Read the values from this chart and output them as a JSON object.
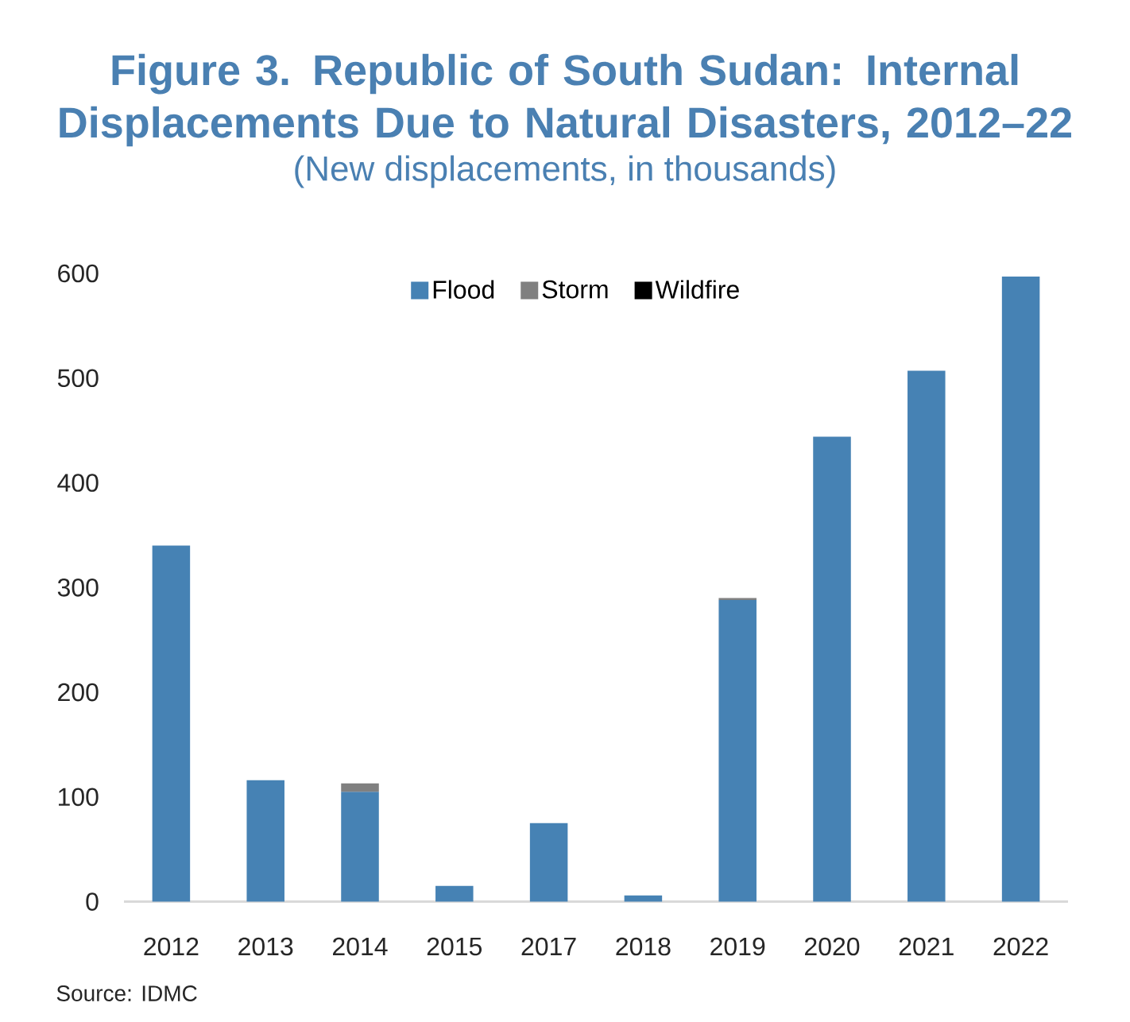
{
  "chart_data": {
    "type": "bar",
    "title": "Figure 3. Republic of South Sudan: Internal Displacements Due to Natural Disasters, 2012–22",
    "subtitle": "(New displacements, in thousands)",
    "categories": [
      "2012",
      "2013",
      "2014",
      "2015",
      "2017",
      "2018",
      "2019",
      "2020",
      "2021",
      "2022"
    ],
    "stacked": true,
    "series": [
      {
        "name": "Flood",
        "color": "#4682b4",
        "values": [
          340,
          116,
          105,
          15,
          75,
          6,
          288,
          444,
          507,
          597
        ]
      },
      {
        "name": "Storm",
        "color": "#808080",
        "values": [
          null,
          null,
          8,
          null,
          null,
          null,
          2,
          null,
          null,
          null
        ]
      },
      {
        "name": "Wildfire",
        "color": "#000000",
        "values": [
          null,
          null,
          null,
          null,
          null,
          null,
          null,
          null,
          null,
          null
        ]
      }
    ],
    "ylim": [
      0,
      600
    ],
    "yticks": [
      0,
      100,
      200,
      300,
      400,
      500,
      600
    ],
    "legend": "top",
    "annotations": [
      "Source: IDMC"
    ]
  }
}
